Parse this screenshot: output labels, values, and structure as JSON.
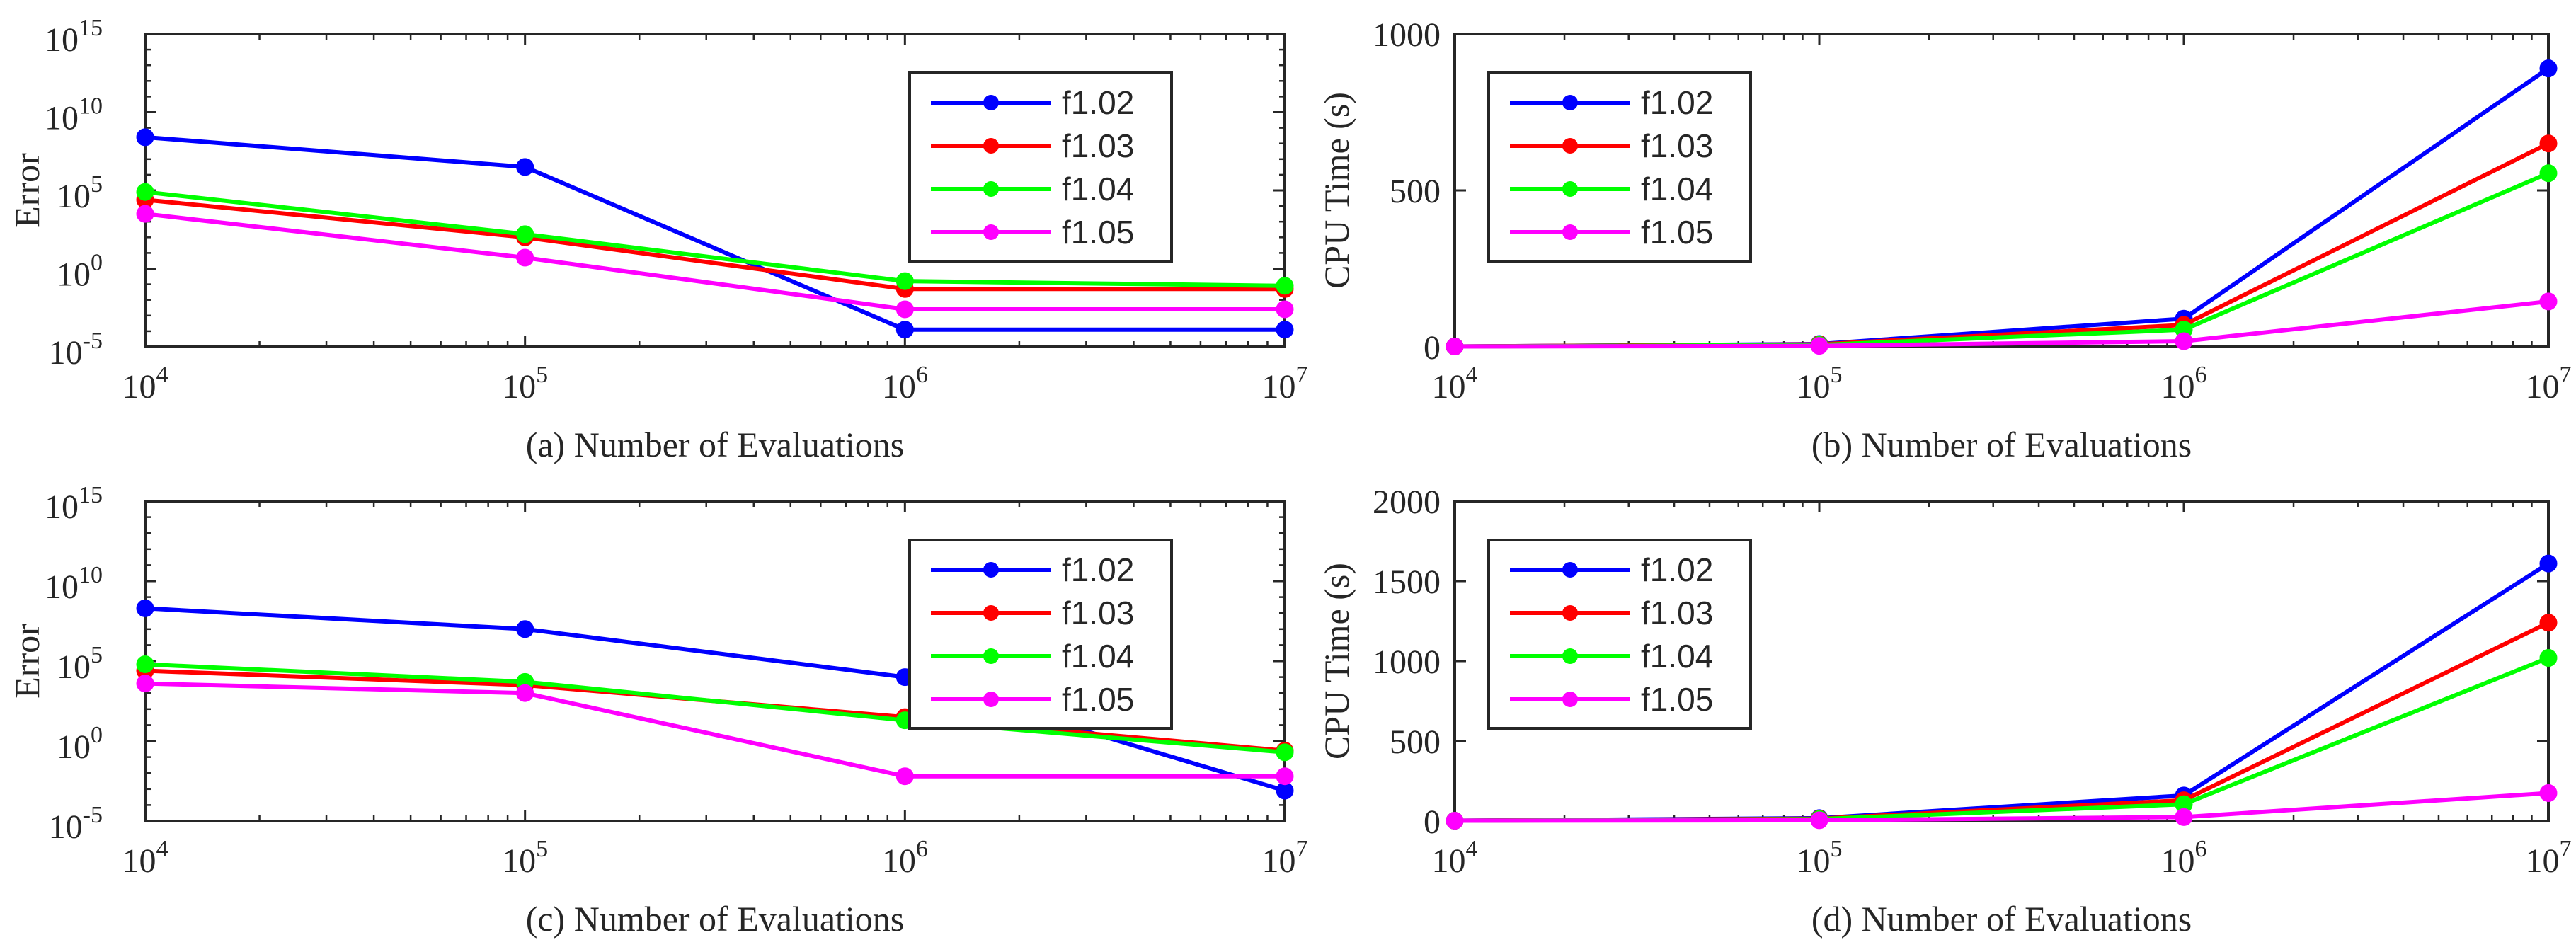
{
  "chart_data": [
    {
      "id": "a",
      "type": "line",
      "xscale": "log",
      "yscale": "log",
      "x": [
        10000,
        100000,
        1000000,
        10000000
      ],
      "xticks": [
        {
          "base": "10",
          "exp": "4"
        },
        {
          "base": "10",
          "exp": "5"
        },
        {
          "base": "10",
          "exp": "6"
        },
        {
          "base": "10",
          "exp": "7"
        }
      ],
      "ylim_exp": [
        -5,
        15
      ],
      "yticks": [
        {
          "base": "10",
          "exp": "-5"
        },
        {
          "base": "10",
          "exp": "0"
        },
        {
          "base": "10",
          "exp": "5"
        },
        {
          "base": "10",
          "exp": "10"
        },
        {
          "base": "10",
          "exp": "15"
        }
      ],
      "xlabel": "(a) Number of Evaluations",
      "ylabel": "Error",
      "legend_position": "top-right",
      "series": [
        {
          "name": "f1.02",
          "color": "#0000ff",
          "log10_values": [
            8.4,
            6.5,
            -3.9,
            -3.9
          ]
        },
        {
          "name": "f1.03",
          "color": "#ff0000",
          "log10_values": [
            4.4,
            2.0,
            -1.3,
            -1.3
          ]
        },
        {
          "name": "f1.04",
          "color": "#00ff00",
          "log10_values": [
            4.9,
            2.2,
            -0.8,
            -1.1
          ]
        },
        {
          "name": "f1.05",
          "color": "#ff00ff",
          "log10_values": [
            3.5,
            0.7,
            -2.6,
            -2.6
          ]
        }
      ]
    },
    {
      "id": "b",
      "type": "line",
      "xscale": "log",
      "yscale": "linear",
      "x": [
        10000,
        100000,
        1000000,
        10000000
      ],
      "xticks": [
        {
          "base": "10",
          "exp": "4"
        },
        {
          "base": "10",
          "exp": "5"
        },
        {
          "base": "10",
          "exp": "6"
        },
        {
          "base": "10",
          "exp": "7"
        }
      ],
      "ylim": [
        0,
        1000
      ],
      "yticks": [
        0,
        500,
        1000
      ],
      "xlabel": "(b) Number of Evaluations",
      "ylabel": "CPU Time (s)",
      "legend_position": "top-left",
      "series": [
        {
          "name": "f1.02",
          "color": "#0000ff",
          "values": [
            1,
            9,
            90,
            890
          ]
        },
        {
          "name": "f1.03",
          "color": "#ff0000",
          "values": [
            1,
            8,
            70,
            650
          ]
        },
        {
          "name": "f1.04",
          "color": "#00ff00",
          "values": [
            1,
            6,
            55,
            555
          ]
        },
        {
          "name": "f1.05",
          "color": "#ff00ff",
          "values": [
            1,
            3,
            18,
            145
          ]
        }
      ]
    },
    {
      "id": "c",
      "type": "line",
      "xscale": "log",
      "yscale": "log",
      "x": [
        10000,
        100000,
        1000000,
        10000000
      ],
      "xticks": [
        {
          "base": "10",
          "exp": "4"
        },
        {
          "base": "10",
          "exp": "5"
        },
        {
          "base": "10",
          "exp": "6"
        },
        {
          "base": "10",
          "exp": "7"
        }
      ],
      "ylim_exp": [
        -5,
        15
      ],
      "yticks": [
        {
          "base": "10",
          "exp": "-5"
        },
        {
          "base": "10",
          "exp": "0"
        },
        {
          "base": "10",
          "exp": "5"
        },
        {
          "base": "10",
          "exp": "10"
        },
        {
          "base": "10",
          "exp": "15"
        }
      ],
      "xlabel": "(c) Number of Evaluations",
      "ylabel": "Error",
      "legend_position": "top-right",
      "series": [
        {
          "name": "f1.02",
          "color": "#0000ff",
          "log10_values": [
            8.3,
            7.0,
            4.0,
            -3.1
          ]
        },
        {
          "name": "f1.03",
          "color": "#ff0000",
          "log10_values": [
            4.4,
            3.5,
            1.5,
            -0.6
          ]
        },
        {
          "name": "f1.04",
          "color": "#00ff00",
          "log10_values": [
            4.8,
            3.7,
            1.3,
            -0.7
          ]
        },
        {
          "name": "f1.05",
          "color": "#ff00ff",
          "log10_values": [
            3.6,
            3.0,
            -2.2,
            -2.2
          ]
        }
      ]
    },
    {
      "id": "d",
      "type": "line",
      "xscale": "log",
      "yscale": "linear",
      "x": [
        10000,
        100000,
        1000000,
        10000000
      ],
      "xticks": [
        {
          "base": "10",
          "exp": "4"
        },
        {
          "base": "10",
          "exp": "5"
        },
        {
          "base": "10",
          "exp": "6"
        },
        {
          "base": "10",
          "exp": "7"
        }
      ],
      "ylim": [
        0,
        2000
      ],
      "yticks": [
        0,
        500,
        1000,
        1500,
        2000
      ],
      "xlabel": "(d) Number of Evaluations",
      "ylabel": "CPU Time (s)",
      "legend_position": "top-left",
      "series": [
        {
          "name": "f1.02",
          "color": "#0000ff",
          "values": [
            2,
            18,
            160,
            1610
          ]
        },
        {
          "name": "f1.03",
          "color": "#ff0000",
          "values": [
            2,
            15,
            130,
            1240
          ]
        },
        {
          "name": "f1.04",
          "color": "#00ff00",
          "values": [
            2,
            12,
            105,
            1020
          ]
        },
        {
          "name": "f1.05",
          "color": "#ff00ff",
          "values": [
            2,
            5,
            25,
            175
          ]
        }
      ]
    }
  ]
}
